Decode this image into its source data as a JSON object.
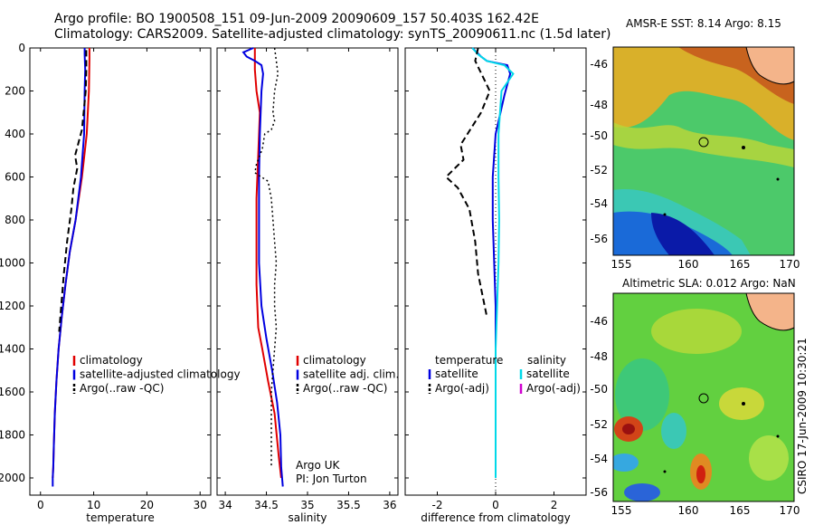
{
  "header": {
    "line1": "Argo profile: BO 1900508_151 09-Jun-2009 20090609_157 50.403S 162.42E",
    "line2": "Climatology: CARS2009. Satellite-adjusted climatology: synTS_20090611.nc (1.5d later)"
  },
  "side_label": "CSIRO 17-Jun-2009 10:30:21",
  "chart_data": [
    {
      "type": "line",
      "xlabel": "temperature",
      "ylabel": "",
      "xlim": [
        -2,
        32
      ],
      "ylim": [
        0,
        2080
      ],
      "xticks": [
        0,
        10,
        20,
        30
      ],
      "yticks": [
        0,
        200,
        400,
        600,
        800,
        1000,
        1200,
        1400,
        1600,
        1800,
        2000
      ],
      "legend": [
        "climatology",
        "satellite-adjusted climatology",
        "Argo(..raw -QC)"
      ],
      "series": [
        {
          "name": "climatology",
          "color": "#e00000",
          "style": "solid",
          "x": [
            9.2,
            9.2,
            9.1,
            8.7,
            7.8,
            6.6,
            5.5,
            4.7,
            4.0,
            3.4,
            3.0,
            2.7,
            2.5,
            2.4,
            2.3
          ],
          "y": [
            0,
            50,
            200,
            400,
            600,
            800,
            950,
            1100,
            1250,
            1400,
            1550,
            1700,
            1850,
            1950,
            2000
          ]
        },
        {
          "name": "satellite-adjusted climatology",
          "color": "#0000e0",
          "style": "solid",
          "x": [
            8.3,
            8.3,
            8.4,
            8.3,
            8.2,
            7.6,
            6.6,
            5.5,
            4.7,
            4.0,
            3.4,
            3.0,
            2.7,
            2.5,
            2.4,
            2.3,
            2.3
          ],
          "y": [
            0,
            30,
            100,
            200,
            400,
            600,
            800,
            950,
            1100,
            1250,
            1400,
            1550,
            1700,
            1850,
            1950,
            2000,
            2040
          ]
        },
        {
          "name": "Argo(..raw -QC)",
          "color": "#000000",
          "style": "dashed",
          "x": [
            8.6,
            8.6,
            8.5,
            7.8,
            6.5,
            6.9,
            6.2,
            5.8,
            5.0,
            4.4,
            3.9,
            3.5
          ],
          "y": [
            10,
            100,
            200,
            380,
            500,
            560,
            650,
            750,
            900,
            1050,
            1200,
            1320
          ]
        }
      ]
    },
    {
      "type": "line",
      "xlabel": "salinity",
      "ylabel": "",
      "xlim": [
        33.9,
        36.1
      ],
      "ylim": [
        0,
        2080
      ],
      "xticks": [
        34,
        34.5,
        35,
        35.5,
        36
      ],
      "yticks": [
        0,
        200,
        400,
        600,
        800,
        1000,
        1200,
        1400,
        1600,
        1800,
        2000
      ],
      "legend": [
        "climatology",
        "satellite adj. clim.",
        "Argo(..raw -QC)"
      ],
      "annotation": [
        "Argo UK",
        "PI: Jon Turton"
      ],
      "series": [
        {
          "name": "climatology",
          "color": "#e00000",
          "style": "solid",
          "x": [
            34.36,
            34.36,
            34.38,
            34.42,
            34.4,
            34.38,
            34.38,
            34.38,
            34.4,
            34.45,
            34.52,
            34.6,
            34.65,
            34.68
          ],
          "y": [
            0,
            100,
            200,
            300,
            500,
            700,
            900,
            1100,
            1300,
            1400,
            1550,
            1700,
            1900,
            2000
          ]
        },
        {
          "name": "satellite adj. clim.",
          "color": "#0000e0",
          "style": "solid",
          "x": [
            34.34,
            34.22,
            34.26,
            34.36,
            34.44,
            34.46,
            34.44,
            34.42,
            34.41,
            34.41,
            34.41,
            34.44,
            34.5,
            34.57,
            34.63,
            34.67,
            34.68,
            34.7
          ],
          "y": [
            0,
            20,
            40,
            60,
            80,
            120,
            200,
            400,
            600,
            800,
            1000,
            1200,
            1350,
            1500,
            1650,
            1800,
            1950,
            2040
          ]
        },
        {
          "name": "Argo(..raw -QC)",
          "color": "#000000",
          "style": "dotted",
          "x": [
            34.6,
            34.62,
            34.64,
            34.6,
            34.58,
            34.6,
            34.56,
            34.48,
            34.45,
            34.38,
            34.36,
            34.52,
            34.56,
            34.58,
            34.6,
            34.62,
            34.6,
            34.6,
            34.62,
            34.6,
            34.58,
            34.56,
            34.56,
            34.56
          ],
          "y": [
            0,
            60,
            120,
            200,
            300,
            340,
            380,
            400,
            470,
            540,
            580,
            620,
            700,
            800,
            900,
            1000,
            1100,
            1200,
            1300,
            1400,
            1500,
            1600,
            1800,
            1950
          ]
        }
      ]
    },
    {
      "type": "line",
      "xlabel": "difference from climatology",
      "ylabel": "",
      "xlim": [
        -3.1,
        3.1
      ],
      "ylim": [
        0,
        2080
      ],
      "xticks": [
        -2,
        0,
        2
      ],
      "yticks": [
        0,
        200,
        400,
        600,
        800,
        1000,
        1200,
        1400,
        1600,
        1800,
        2000
      ],
      "legend_temperature": [
        "temperature",
        "satellite",
        "Argo(-adj)"
      ],
      "legend_salinity": [
        "salinity",
        "satellite",
        "Argo(-adj)"
      ],
      "series": [
        {
          "name": "temperature satellite",
          "color": "#0000e0",
          "style": "solid",
          "x": [
            -0.8,
            -0.5,
            -0.3,
            0.4,
            0.5,
            0.3,
            0.0,
            -0.1,
            -0.1,
            -0.05,
            0.0,
            0.0,
            0.0,
            0.0,
            0.0
          ],
          "y": [
            0,
            40,
            60,
            80,
            120,
            220,
            400,
            600,
            800,
            1000,
            1200,
            1400,
            1600,
            1800,
            2000
          ]
        },
        {
          "name": "salinity satellite",
          "color": "#00d8e8",
          "style": "solid",
          "x": [
            -0.8,
            -0.6,
            -0.3,
            0.3,
            0.6,
            0.2,
            0.1,
            0.1,
            0.12,
            0.1,
            0.05,
            0.0,
            0.0,
            0.0
          ],
          "y": [
            0,
            30,
            60,
            80,
            120,
            200,
            400,
            600,
            800,
            1000,
            1200,
            1400,
            1700,
            2000
          ]
        },
        {
          "name": "temperature Argo(-adj)",
          "color": "#000000",
          "style": "dashed",
          "x": [
            -0.6,
            -0.7,
            -0.2,
            -0.5,
            -1.2,
            -1.1,
            -1.4,
            -1.7,
            -1.3,
            -0.9,
            -0.7,
            -0.6,
            -0.3
          ],
          "y": [
            0,
            60,
            200,
            300,
            450,
            520,
            560,
            600,
            650,
            750,
            900,
            1050,
            1250
          ]
        },
        {
          "name": "salinity Argo(-adj)",
          "color": "#d000d0",
          "style": "dashed",
          "x": [],
          "y": []
        }
      ]
    }
  ],
  "maps": [
    {
      "title": "AMSR-E SST: 8.14 Argo: 8.15",
      "xticks": [
        "155",
        "160",
        "165",
        "170"
      ],
      "yticks": [
        "-46",
        "-48",
        "-50",
        "-52",
        "-54",
        "-56"
      ]
    },
    {
      "title": "Altimetric SLA: 0.012 Argo: NaN",
      "xticks": [
        "155",
        "160",
        "165",
        "170"
      ],
      "yticks": [
        "-46",
        "-48",
        "-50",
        "-52",
        "-54",
        "-56"
      ]
    }
  ]
}
